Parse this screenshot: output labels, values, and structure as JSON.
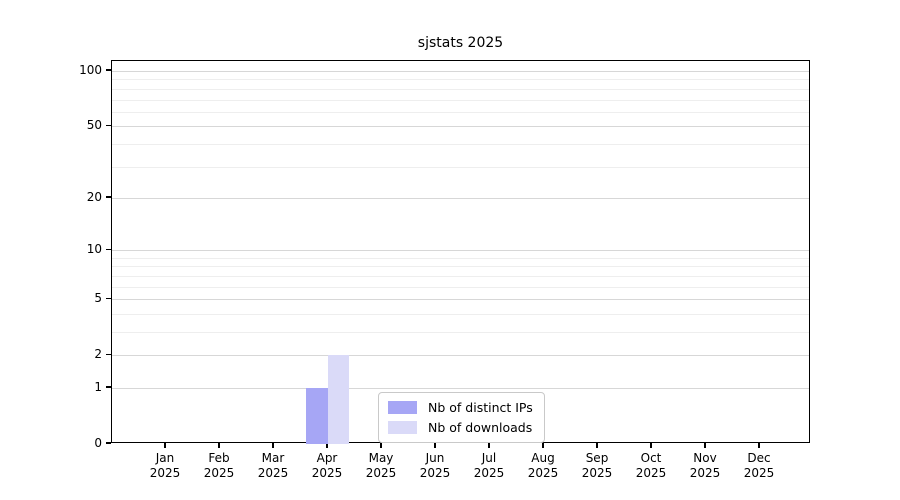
{
  "chart_data": {
    "type": "bar",
    "title": "sjstats 2025",
    "categories": [
      "Jan 2025",
      "Feb 2025",
      "Mar 2025",
      "Apr 2025",
      "May 2025",
      "Jun 2025",
      "Jul 2025",
      "Aug 2025",
      "Sep 2025",
      "Oct 2025",
      "Nov 2025",
      "Dec 2025"
    ],
    "series": [
      {
        "name": "Nb of distinct IPs",
        "color": "#a6a6f5",
        "values": [
          0,
          0,
          0,
          1,
          0,
          0,
          0,
          0,
          0,
          0,
          0,
          0
        ]
      },
      {
        "name": "Nb of downloads",
        "color": "#dadaf8",
        "values": [
          0,
          0,
          0,
          2,
          0,
          0,
          0,
          0,
          0,
          0,
          0,
          0
        ]
      }
    ],
    "xlabel": "",
    "ylabel": "",
    "yscale": "log10(1+x)",
    "ylim": [
      0,
      113
    ],
    "yticks": [
      0,
      1,
      2,
      5,
      10,
      20,
      50,
      100
    ],
    "minor_yticks": [
      3,
      4,
      6,
      7,
      8,
      9,
      30,
      40,
      60,
      70,
      80,
      90
    ],
    "grid": "horizontal-only",
    "legend": {
      "position": "inside-bottom-center",
      "entries": [
        "Nb of distinct IPs",
        "Nb of downloads"
      ]
    },
    "colors": {
      "major_grid": "#d7d7d7",
      "minor_grid": "#eeeeee",
      "spine": "#000000",
      "background": "#ffffff"
    }
  }
}
